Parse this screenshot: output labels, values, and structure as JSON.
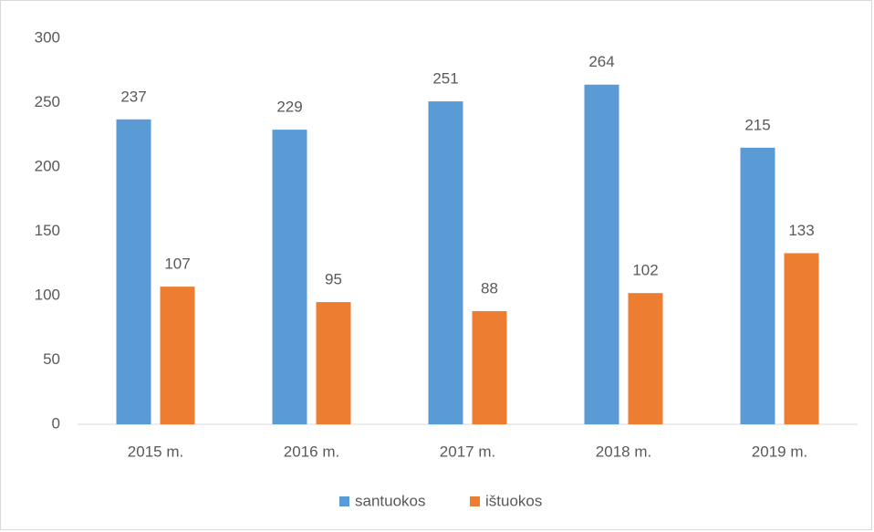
{
  "chart_data": {
    "type": "bar",
    "categories": [
      "2015 m.",
      "2016 m.",
      "2017 m.",
      "2018 m.",
      "2019 m."
    ],
    "series": [
      {
        "name": "santuokos",
        "color": "#5b9bd5",
        "values": [
          237,
          229,
          251,
          264,
          215
        ]
      },
      {
        "name": "ištuokos",
        "color": "#ed7d31",
        "values": [
          107,
          95,
          88,
          102,
          133
        ]
      }
    ],
    "ylim": [
      0,
      300
    ],
    "yticks": [
      0,
      50,
      100,
      150,
      200,
      250,
      300
    ],
    "grid": false,
    "legend": "bottom"
  }
}
